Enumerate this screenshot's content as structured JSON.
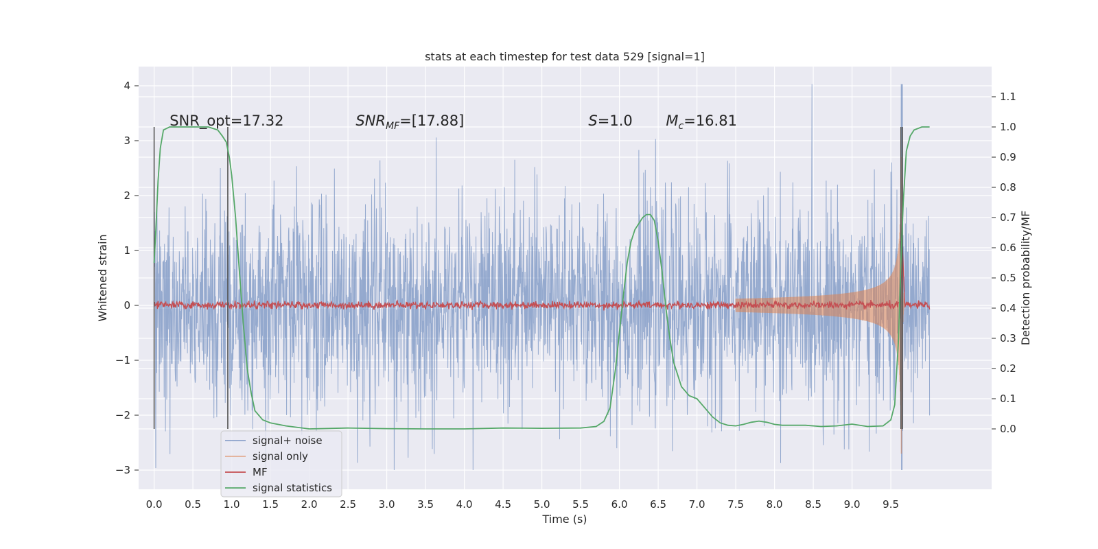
{
  "chart_data": {
    "type": "line",
    "title": "stats at each timestep for test data 529 [signal=1]",
    "xlabel": "Time (s)",
    "ylabel": "Whitened strain",
    "y2label": "Detection probability/MF",
    "xlim": [
      -0.2,
      10.8
    ],
    "ylim": [
      -3.35,
      4.35
    ],
    "y2lim": [
      -0.2,
      1.2
    ],
    "xticks": [
      0.0,
      0.5,
      1.0,
      1.5,
      2.0,
      2.5,
      3.0,
      3.5,
      4.0,
      4.5,
      5.0,
      5.5,
      6.0,
      6.5,
      7.0,
      7.5,
      8.0,
      8.5,
      9.0,
      9.5
    ],
    "xtick_labels": [
      "0.0",
      "0.5",
      "1.0",
      "1.5",
      "2.0",
      "2.5",
      "3.0",
      "3.5",
      "4.0",
      "4.5",
      "5.0",
      "5.5",
      "6.0",
      "6.5",
      "7.0",
      "7.5",
      "8.0",
      "8.5",
      "9.0",
      "9.5"
    ],
    "yticks": [
      -3,
      -2,
      -1,
      0,
      1,
      2,
      3,
      4
    ],
    "ytick_labels": [
      "−3",
      "−2",
      "−1",
      "0",
      "1",
      "2",
      "3",
      "4"
    ],
    "y2ticks": [
      0.0,
      0.1,
      0.2,
      0.3,
      0.4,
      0.5,
      0.6,
      0.7,
      0.8,
      0.9,
      1.0,
      1.1
    ],
    "y2tick_labels": [
      "0.0",
      "0.1",
      "0.2",
      "0.3",
      "0.4",
      "0.5",
      "0.6",
      "0.7",
      "0.8",
      "0.9",
      "1.0",
      "1.1"
    ],
    "grid": true,
    "legend_position": "lower-left",
    "series": [
      {
        "name": "signal+ noise",
        "color": "#4c72b0",
        "axis": "left",
        "kind": "noise",
        "time_range": [
          0.0,
          10.0
        ],
        "amplitude_std": 0.95,
        "max_value": 4.03,
        "min_value": -3.0
      },
      {
        "name": "signal only",
        "color": "#dd8452",
        "axis": "left",
        "kind": "chirp",
        "time_range": [
          7.5,
          9.68
        ],
        "peak_time": 9.64,
        "peak_amplitude": 2.7
      },
      {
        "name": "MF",
        "color": "#c44e52",
        "axis": "right",
        "baseline": 0.41,
        "peak_time": 9.65,
        "peak_value": 0.6
      },
      {
        "name": "signal statistics",
        "color": "#55a868",
        "axis": "right",
        "x": [
          0.0,
          0.02,
          0.05,
          0.08,
          0.12,
          0.2,
          0.3,
          0.5,
          0.7,
          0.82,
          0.88,
          0.93,
          0.97,
          1.0,
          1.05,
          1.1,
          1.15,
          1.2,
          1.25,
          1.3,
          1.4,
          1.5,
          1.7,
          2.0,
          2.5,
          3.0,
          3.5,
          4.0,
          4.5,
          5.0,
          5.5,
          5.7,
          5.8,
          5.88,
          5.95,
          6.0,
          6.05,
          6.1,
          6.15,
          6.2,
          6.25,
          6.3,
          6.35,
          6.4,
          6.45,
          6.5,
          6.55,
          6.6,
          6.65,
          6.7,
          6.8,
          6.9,
          7.0,
          7.1,
          7.2,
          7.3,
          7.4,
          7.5,
          7.6,
          7.7,
          7.8,
          7.9,
          8.0,
          8.1,
          8.2,
          8.4,
          8.6,
          8.8,
          9.0,
          9.2,
          9.4,
          9.5,
          9.55,
          9.6,
          9.63,
          9.66,
          9.7,
          9.75,
          9.8,
          9.9,
          10.0
        ],
        "y": [
          0.55,
          0.65,
          0.82,
          0.93,
          0.99,
          1.0,
          1.0,
          1.0,
          1.0,
          0.99,
          0.97,
          0.95,
          0.9,
          0.84,
          0.7,
          0.52,
          0.35,
          0.2,
          0.12,
          0.06,
          0.03,
          0.02,
          0.01,
          0.0,
          0.003,
          0.001,
          0.0,
          0.0,
          0.003,
          0.002,
          0.003,
          0.008,
          0.025,
          0.07,
          0.2,
          0.32,
          0.44,
          0.55,
          0.62,
          0.66,
          0.68,
          0.7,
          0.71,
          0.71,
          0.69,
          0.62,
          0.52,
          0.4,
          0.3,
          0.22,
          0.14,
          0.11,
          0.1,
          0.07,
          0.04,
          0.02,
          0.012,
          0.01,
          0.015,
          0.022,
          0.026,
          0.022,
          0.015,
          0.012,
          0.012,
          0.012,
          0.008,
          0.01,
          0.016,
          0.008,
          0.01,
          0.03,
          0.08,
          0.3,
          0.55,
          0.75,
          0.92,
          0.97,
          0.99,
          1.0,
          1.0
        ]
      }
    ],
    "vertical_markers": [
      0.0,
      0.95,
      9.63,
      9.65
    ],
    "annotations": [
      {
        "text": "SNR_opt=17.32",
        "x": 0.2
      },
      {
        "text": "SNR",
        "sub": "MF",
        "after": "=[17.88]",
        "x": 2.6,
        "italic": true
      },
      {
        "text": "S",
        "after": "=1.0",
        "x": 5.6,
        "italic": true
      },
      {
        "text": "M",
        "sub": "c",
        "after": "=16.81",
        "x": 6.6,
        "italic": true
      }
    ]
  }
}
